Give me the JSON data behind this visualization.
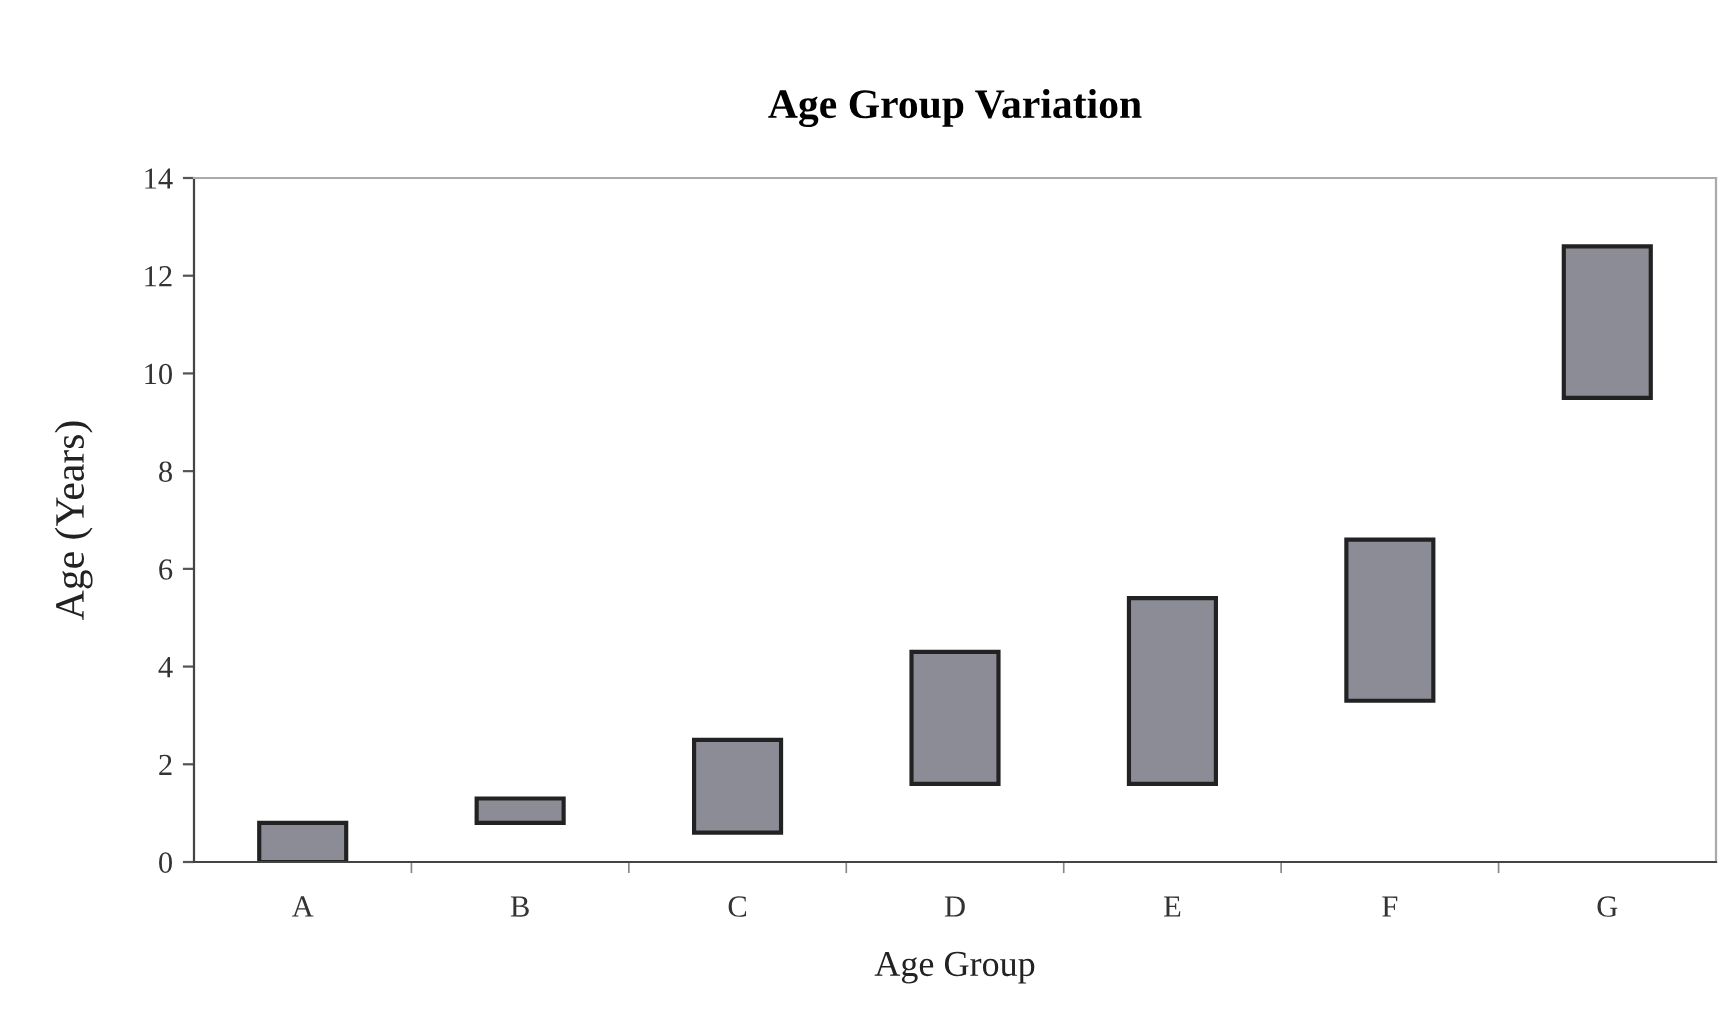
{
  "chart_data": {
    "type": "bar",
    "title": "Age Group Variation",
    "xlabel": "Age Group",
    "ylabel": "Age (Years)",
    "categories": [
      "A",
      "B",
      "C",
      "D",
      "E",
      "F",
      "G"
    ],
    "base": [
      0,
      0.8,
      0.6,
      1.6,
      1.6,
      3.3,
      9.5
    ],
    "values": [
      0.8,
      0.5,
      1.9,
      2.7,
      3.8,
      3.3,
      3.1
    ],
    "color": "#8c8c96",
    "ylim": [
      0,
      14
    ],
    "yticks": [
      0,
      2,
      4,
      6,
      8,
      10,
      12,
      14
    ],
    "grid": false,
    "legend": false
  }
}
